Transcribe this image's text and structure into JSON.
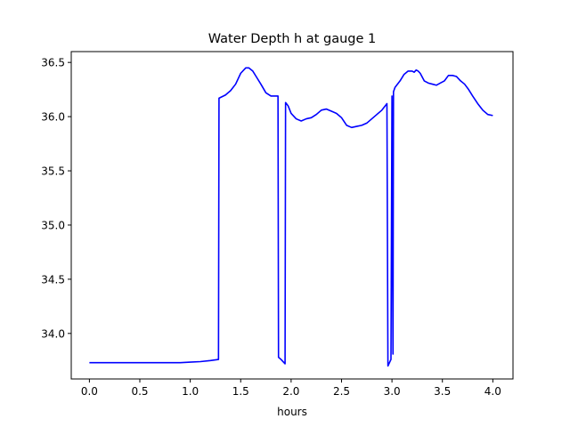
{
  "chart_data": {
    "type": "line",
    "title": "Water Depth h at gauge 1",
    "xlabel": "hours",
    "ylabel": "",
    "xlim": [
      -0.18,
      4.2
    ],
    "ylim": [
      33.58,
      36.6
    ],
    "xticks": [
      0.0,
      0.5,
      1.0,
      1.5,
      2.0,
      2.5,
      3.0,
      3.5,
      4.0
    ],
    "xtick_labels": [
      "0.0",
      "0.5",
      "1.0",
      "1.5",
      "2.0",
      "2.5",
      "3.0",
      "3.5",
      "4.0"
    ],
    "yticks": [
      34.0,
      34.5,
      35.0,
      35.5,
      36.0,
      36.5
    ],
    "ytick_labels": [
      "34.0",
      "34.5",
      "35.0",
      "35.5",
      "36.0",
      "36.5"
    ],
    "grid": false,
    "legend": "none",
    "series": [
      {
        "color": "#0000ff",
        "x": [
          0.0,
          0.3,
          0.6,
          0.9,
          1.0,
          1.1,
          1.2,
          1.28,
          1.285,
          1.35,
          1.4,
          1.45,
          1.5,
          1.55,
          1.58,
          1.62,
          1.66,
          1.7,
          1.75,
          1.8,
          1.84,
          1.87,
          1.875,
          1.9,
          1.94,
          1.945,
          1.97,
          2.0,
          2.05,
          2.1,
          2.15,
          2.2,
          2.25,
          2.3,
          2.35,
          2.4,
          2.45,
          2.5,
          2.55,
          2.6,
          2.65,
          2.7,
          2.75,
          2.8,
          2.85,
          2.9,
          2.95,
          2.96,
          2.965,
          2.99,
          3.0,
          3.01,
          3.015,
          3.03,
          3.08,
          3.12,
          3.16,
          3.2,
          3.22,
          3.24,
          3.26,
          3.28,
          3.32,
          3.36,
          3.4,
          3.44,
          3.48,
          3.52,
          3.56,
          3.6,
          3.64,
          3.68,
          3.72,
          3.76,
          3.8,
          3.85,
          3.9,
          3.95,
          4.0
        ],
        "y": [
          33.73,
          33.73,
          33.73,
          33.73,
          33.735,
          33.74,
          33.75,
          33.76,
          36.17,
          36.2,
          36.24,
          36.3,
          36.4,
          36.45,
          36.45,
          36.42,
          36.36,
          36.3,
          36.22,
          36.19,
          36.19,
          36.19,
          33.78,
          33.76,
          33.72,
          36.13,
          36.1,
          36.03,
          35.98,
          35.96,
          35.98,
          35.99,
          36.02,
          36.06,
          36.07,
          36.05,
          36.03,
          35.99,
          35.92,
          35.9,
          35.91,
          35.92,
          35.94,
          35.98,
          36.02,
          36.06,
          36.12,
          33.7,
          33.71,
          33.76,
          36.19,
          33.81,
          36.23,
          36.27,
          36.33,
          36.39,
          36.42,
          36.42,
          36.41,
          36.43,
          36.42,
          36.4,
          36.33,
          36.31,
          36.3,
          36.29,
          36.31,
          36.33,
          36.38,
          36.38,
          36.37,
          36.33,
          36.3,
          36.25,
          36.19,
          36.12,
          36.06,
          36.02,
          36.01
        ]
      }
    ]
  }
}
